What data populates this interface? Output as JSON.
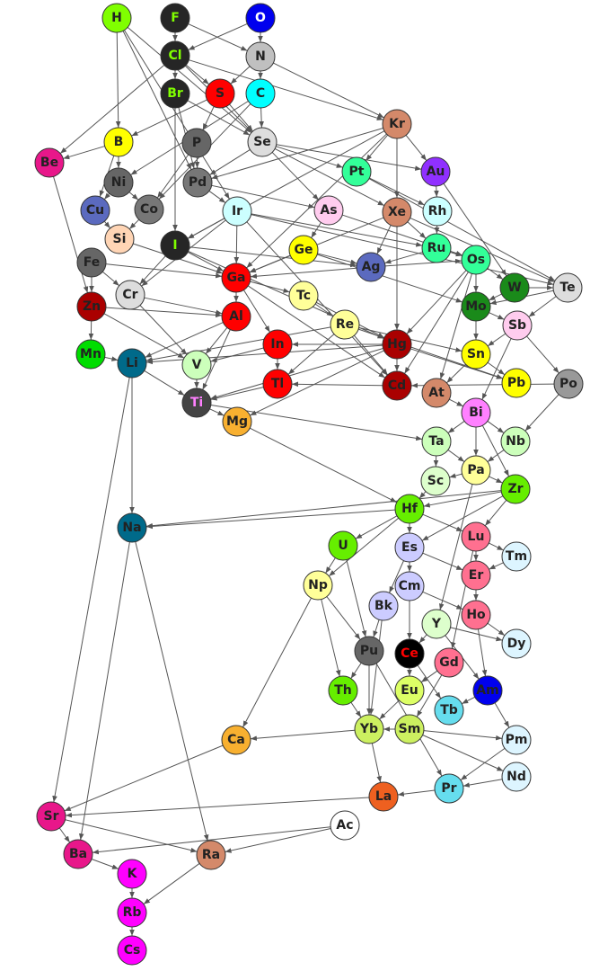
{
  "nodes": [
    {
      "label": "H",
      "color": "#80ff00"
    },
    {
      "label": "F",
      "color": "#262626",
      "text_color": "#80ff00"
    },
    {
      "label": "O",
      "color": "#0000ee",
      "text_color": "#ffffff"
    },
    {
      "label": "Cl",
      "color": "#262626",
      "text_color": "#80ff00"
    },
    {
      "label": "N",
      "color": "#c0c0c0"
    },
    {
      "label": "Br",
      "color": "#262626",
      "text_color": "#80ff00"
    },
    {
      "label": "S",
      "color": "#ff0000"
    },
    {
      "label": "C",
      "color": "#00ffff"
    },
    {
      "label": "Kr",
      "color": "#d4896a"
    },
    {
      "label": "B",
      "color": "#ffff00"
    },
    {
      "label": "P",
      "color": "#666666"
    },
    {
      "label": "Se",
      "color": "#dddddd"
    },
    {
      "label": "Be",
      "color": "#e8178a"
    },
    {
      "label": "Pt",
      "color": "#33ff99"
    },
    {
      "label": "Au",
      "color": "#9030ff"
    },
    {
      "label": "Ni",
      "color": "#666666"
    },
    {
      "label": "Pd",
      "color": "#777777"
    },
    {
      "label": "Cu",
      "color": "#5b6abf"
    },
    {
      "label": "Co",
      "color": "#777777"
    },
    {
      "label": "Ir",
      "color": "#ccffff"
    },
    {
      "label": "As",
      "color": "#ffccee"
    },
    {
      "label": "Xe",
      "color": "#d4896a"
    },
    {
      "label": "Rh",
      "color": "#ccffff"
    },
    {
      "label": "Si",
      "color": "#ffd5b5"
    },
    {
      "label": "I",
      "color": "#262626",
      "text_color": "#80ff00"
    },
    {
      "label": "Ge",
      "color": "#ffff00"
    },
    {
      "label": "Ru",
      "color": "#33ff99"
    },
    {
      "label": "Os",
      "color": "#33ff99"
    },
    {
      "label": "Fe",
      "color": "#666666"
    },
    {
      "label": "Ag",
      "color": "#5b6abf"
    },
    {
      "label": "Te",
      "color": "#dddddd"
    },
    {
      "label": "W",
      "color": "#1a8a1a"
    },
    {
      "label": "Ga",
      "color": "#ff0000"
    },
    {
      "label": "Cr",
      "color": "#dddddd"
    },
    {
      "label": "Tc",
      "color": "#ffff99"
    },
    {
      "label": "Zn",
      "color": "#aa0000"
    },
    {
      "label": "Al",
      "color": "#ff0000"
    },
    {
      "label": "Mo",
      "color": "#1a8a1a"
    },
    {
      "label": "Re",
      "color": "#ffff99"
    },
    {
      "label": "Sb",
      "color": "#ffccee"
    },
    {
      "label": "Mn",
      "color": "#00dd00"
    },
    {
      "label": "Li",
      "color": "#006a8a"
    },
    {
      "label": "In",
      "color": "#ff0000"
    },
    {
      "label": "Hg",
      "color": "#aa0000"
    },
    {
      "label": "Sn",
      "color": "#ffff00"
    },
    {
      "label": "V",
      "color": "#ccffbb"
    },
    {
      "label": "Tl",
      "color": "#ff0000"
    },
    {
      "label": "Cd",
      "color": "#aa0000"
    },
    {
      "label": "At",
      "color": "#d4896a"
    },
    {
      "label": "Pb",
      "color": "#ffff00"
    },
    {
      "label": "Po",
      "color": "#999999"
    },
    {
      "label": "Ti",
      "color": "#444444",
      "text_color": "#ff80ff"
    },
    {
      "label": "Mg",
      "color": "#f8b030"
    },
    {
      "label": "Bi",
      "color": "#ff80ff"
    },
    {
      "label": "Ta",
      "color": "#ccffbb"
    },
    {
      "label": "Nb",
      "color": "#ccffbb"
    },
    {
      "label": "Pa",
      "color": "#ffff99"
    },
    {
      "label": "Sc",
      "color": "#ddffcc"
    },
    {
      "label": "Zr",
      "color": "#66ee00"
    },
    {
      "label": "Hf",
      "color": "#66ee00"
    },
    {
      "label": "Na",
      "color": "#006a8a"
    },
    {
      "label": "U",
      "color": "#66ee00"
    },
    {
      "label": "Es",
      "color": "#ccccff"
    },
    {
      "label": "Lu",
      "color": "#ff7090"
    },
    {
      "label": "Tm",
      "color": "#ddf5ff"
    },
    {
      "label": "Er",
      "color": "#ff7090"
    },
    {
      "label": "Cm",
      "color": "#ccccff"
    },
    {
      "label": "Np",
      "color": "#ffff99"
    },
    {
      "label": "Bk",
      "color": "#ccccff"
    },
    {
      "label": "Ho",
      "color": "#ff7090"
    },
    {
      "label": "Y",
      "color": "#ddffcc"
    },
    {
      "label": "Dy",
      "color": "#ddf5ff"
    },
    {
      "label": "Pu",
      "color": "#666666"
    },
    {
      "label": "Ce",
      "color": "#000000",
      "text_color": "#ff0000"
    },
    {
      "label": "Gd",
      "color": "#ff7090"
    },
    {
      "label": "Th",
      "color": "#66ee00"
    },
    {
      "label": "Eu",
      "color": "#ddff66"
    },
    {
      "label": "Am",
      "color": "#0000ee"
    },
    {
      "label": "Tb",
      "color": "#66ddee"
    },
    {
      "label": "Ca",
      "color": "#f8b030"
    },
    {
      "label": "Yb",
      "color": "#ccf060"
    },
    {
      "label": "Sm",
      "color": "#ccf060"
    },
    {
      "label": "Pm",
      "color": "#ddf5ff"
    },
    {
      "label": "Nd",
      "color": "#ddf5ff"
    },
    {
      "label": "Pr",
      "color": "#66ddee"
    },
    {
      "label": "La",
      "color": "#ee6020"
    },
    {
      "label": "Sr",
      "color": "#e8178a"
    },
    {
      "label": "Ac",
      "color": "#ffffff"
    },
    {
      "label": "Ba",
      "color": "#e8178a"
    },
    {
      "label": "Ra",
      "color": "#d4896a"
    },
    {
      "label": "K",
      "color": "#ff00ff"
    },
    {
      "label": "Rb",
      "color": "#ff00ff"
    },
    {
      "label": "Cs",
      "color": "#ff00ff"
    }
  ]
}
